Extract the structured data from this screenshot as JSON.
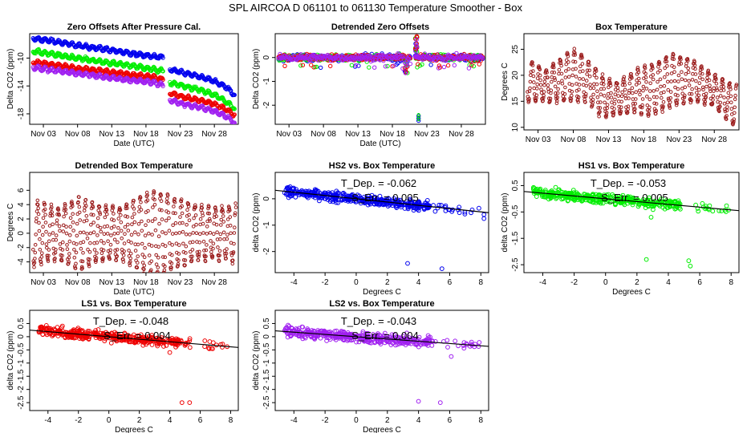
{
  "figure_title": "SPL   AIRCOA D   061101 to 061130   Temperature Smoother - Box",
  "colors": {
    "blue": "#0000ee",
    "green": "#00ee00",
    "red": "#ee0000",
    "purple": "#a020f0",
    "brown": "#9b1c1c"
  },
  "chart_data": [
    {
      "id": "zero-offsets",
      "type": "scatter",
      "title": "Zero Offsets After Pressure Cal.",
      "xlabel": "Date (UTC)",
      "ylabel": "Delta CO2 (ppm)",
      "xlim": [
        1,
        31.5
      ],
      "ylim": [
        -19.5,
        -6.5
      ],
      "xticks": [
        3,
        8,
        13,
        18,
        23,
        28
      ],
      "xticklabels": [
        "Nov 03",
        "Nov 08",
        "Nov 13",
        "Nov 18",
        "Nov 23",
        "Nov 28"
      ],
      "yticks": [
        -18,
        -14,
        -10
      ],
      "yticklabels": [
        "-18",
        "-14",
        "-10"
      ],
      "series": [
        {
          "name": "HS2",
          "color": "#0000ee",
          "segments": [
            {
              "x": [
                1.5,
                4,
                8,
                12,
                16,
                19,
                20.5
              ],
              "y": [
                -7.2,
                -7.5,
                -8.2,
                -8.7,
                -9.4,
                -9.7,
                -9.9
              ]
            },
            {
              "x": [
                21.5,
                23,
                26,
                28,
                29.8,
                31
              ],
              "y": [
                -11.6,
                -12.0,
                -12.7,
                -13.3,
                -14.2,
                -15.3
              ]
            }
          ]
        },
        {
          "name": "HS1",
          "color": "#00ee00",
          "segments": [
            {
              "x": [
                1.5,
                4,
                8,
                12,
                16,
                19,
                20.5
              ],
              "y": [
                -9.0,
                -9.4,
                -10.0,
                -10.6,
                -11.1,
                -11.6,
                -11.9
              ]
            },
            {
              "x": [
                21.5,
                23,
                26,
                28,
                29.8,
                31
              ],
              "y": [
                -13.5,
                -13.9,
                -14.6,
                -15.3,
                -16.3,
                -17.3
              ]
            }
          ]
        },
        {
          "name": "LS1",
          "color": "#ee0000",
          "segments": [
            {
              "x": [
                1.5,
                4,
                8,
                12,
                16,
                19,
                20.5
              ],
              "y": [
                -10.6,
                -10.9,
                -11.5,
                -11.9,
                -12.4,
                -12.7,
                -13.1
              ]
            },
            {
              "x": [
                21.5,
                23,
                26,
                28,
                29.8,
                31
              ],
              "y": [
                -15.0,
                -15.5,
                -16.1,
                -16.6,
                -17.4,
                -18.2
              ]
            }
          ]
        },
        {
          "name": "LS2",
          "color": "#a020f0",
          "segments": [
            {
              "x": [
                1.5,
                4,
                8,
                12,
                16,
                19,
                20.5
              ],
              "y": [
                -11.3,
                -11.7,
                -12.2,
                -12.7,
                -13.2,
                -13.5,
                -13.9
              ]
            },
            {
              "x": [
                21.5,
                23,
                26,
                28,
                29.8,
                31
              ],
              "y": [
                -16.0,
                -16.5,
                -17.1,
                -17.6,
                -18.4,
                -19.3
              ]
            }
          ]
        }
      ]
    },
    {
      "id": "detrended-zero-offsets",
      "type": "scatter",
      "title": "Detrended Zero Offsets",
      "xlabel": "Date (UTC)",
      "ylabel": "Delta CO2 (ppm)",
      "xlim": [
        1,
        31.5
      ],
      "ylim": [
        -2.8,
        1.0
      ],
      "xticks": [
        3,
        8,
        13,
        18,
        23,
        28
      ],
      "xticklabels": [
        "Nov 03",
        "Nov 08",
        "Nov 13",
        "Nov 18",
        "Nov 23",
        "Nov 28"
      ],
      "yticks": [
        -2,
        -1,
        0
      ],
      "yticklabels": [
        "-2",
        "-1",
        "0"
      ],
      "series_colors": [
        "#0000ee",
        "#00ee00",
        "#ee0000",
        "#a020f0"
      ],
      "band": [
        -0.25,
        0.25
      ],
      "features": {
        "spike_day": 21.3,
        "spike_max": 0.95,
        "outlier_day": 21.8,
        "outlier_values": [
          -2.45,
          -2.55,
          -2.65
        ],
        "dip_day": 20.0,
        "dip_min": -0.65
      }
    },
    {
      "id": "box-temperature",
      "type": "line",
      "title": "Box Temperature",
      "xlabel": "",
      "ylabel": "Degrees C",
      "xlim": [
        1,
        31.5
      ],
      "ylim": [
        9.5,
        28
      ],
      "xticks": [
        3,
        8,
        13,
        18,
        23,
        28
      ],
      "xticklabels": [
        "Nov 03",
        "Nov 08",
        "Nov 13",
        "Nov 18",
        "Nov 23",
        "Nov 28"
      ],
      "yticks": [
        10,
        15,
        20,
        25
      ],
      "yticklabels": [
        "10",
        "15",
        "20",
        "25"
      ],
      "color": "#9b1c1c",
      "baseline": [
        [
          1.5,
          19
        ],
        [
          4,
          18
        ],
        [
          8,
          20
        ],
        [
          10,
          19
        ],
        [
          12,
          16
        ],
        [
          14,
          15.5
        ],
        [
          17,
          17
        ],
        [
          19,
          17
        ],
        [
          22,
          19
        ],
        [
          25,
          19
        ],
        [
          28,
          17
        ],
        [
          31,
          14
        ]
      ],
      "amplitude": [
        [
          1.5,
          4
        ],
        [
          4,
          3
        ],
        [
          8,
          5
        ],
        [
          10,
          4
        ],
        [
          12,
          4
        ],
        [
          14,
          3
        ],
        [
          17,
          4
        ],
        [
          19,
          5
        ],
        [
          22,
          5
        ],
        [
          25,
          4
        ],
        [
          28,
          3
        ],
        [
          31,
          4
        ]
      ]
    },
    {
      "id": "detrended-box-temperature",
      "type": "line",
      "title": "Detrended Box Temperature",
      "xlabel": "Date (UTC)",
      "ylabel": "Degrees C",
      "xlim": [
        1,
        31.5
      ],
      "ylim": [
        -5.5,
        8.5
      ],
      "xticks": [
        3,
        8,
        13,
        18,
        23,
        28
      ],
      "xticklabels": [
        "Nov 03",
        "Nov 08",
        "Nov 13",
        "Nov 18",
        "Nov 23",
        "Nov 28"
      ],
      "yticks": [
        -4,
        -2,
        0,
        2,
        4,
        6
      ],
      "yticklabels": [
        "-4",
        "-2",
        "0",
        "2",
        "4",
        "6"
      ],
      "color": "#9b1c1c",
      "amplitude": [
        [
          1.5,
          4.5
        ],
        [
          5,
          3.5
        ],
        [
          8,
          5
        ],
        [
          11,
          4
        ],
        [
          14,
          3.5
        ],
        [
          17,
          5
        ],
        [
          19,
          6
        ],
        [
          22,
          5
        ],
        [
          25,
          4
        ],
        [
          28,
          3.5
        ],
        [
          31,
          4
        ]
      ]
    },
    {
      "id": "hs2-vs-box",
      "type": "scatter",
      "title": "HS2 vs. Box Temperature",
      "xlabel": "Degrees C",
      "ylabel": "delta CO2 (ppm)",
      "xlim": [
        -5.2,
        8.5
      ],
      "ylim": [
        -2.8,
        1.0
      ],
      "xticks": [
        -4,
        -2,
        0,
        2,
        4,
        6,
        8
      ],
      "xticklabels": [
        "-4",
        "-2",
        "0",
        "2",
        "4",
        "6",
        "8"
      ],
      "yticks": [
        -2,
        -1,
        0
      ],
      "yticklabels": [
        "-2",
        "-1",
        "0"
      ],
      "color": "#0000ee",
      "annotation": {
        "tdep_label": "T_Dep. =",
        "tdep_value": "-0.062",
        "serr_label": "S_Err. =",
        "serr_value": "0.005"
      },
      "fit": {
        "slope": -0.062,
        "intercept": 0.0
      },
      "outliers": [
        [
          3.3,
          -2.45
        ],
        [
          5.5,
          -2.65
        ],
        [
          8.2,
          -0.6
        ],
        [
          8.2,
          -0.75
        ]
      ]
    },
    {
      "id": "hs1-vs-box",
      "type": "scatter",
      "title": "HS1 vs. Box Temperature",
      "xlabel": "Degrees C",
      "ylabel": "delta CO2 (ppm)",
      "xlim": [
        -5.2,
        8.5
      ],
      "ylim": [
        -2.8,
        1.0
      ],
      "xticks": [
        -4,
        -2,
        0,
        2,
        4,
        6,
        8
      ],
      "xticklabels": [
        "-4",
        "-2",
        "0",
        "2",
        "4",
        "6",
        "8"
      ],
      "yticks": [
        -2.5,
        -1.5,
        -0.5,
        0.5
      ],
      "yticklabels": [
        "-2.5",
        "-1.5",
        "-0.5",
        "0.5"
      ],
      "color": "#00ee00",
      "annotation": {
        "tdep_label": "T_Dep. =",
        "tdep_value": "-0.053",
        "serr_label": "S_Err. =",
        "serr_value": "0.005"
      },
      "fit": {
        "slope": -0.053,
        "intercept": 0.0
      },
      "outliers": [
        [
          2.6,
          -2.3
        ],
        [
          5.3,
          -2.35
        ],
        [
          5.4,
          -2.55
        ],
        [
          2.9,
          -0.7
        ]
      ]
    },
    {
      "id": "ls1-vs-box",
      "type": "scatter",
      "title": "LS1 vs. Box Temperature",
      "xlabel": "Degrees C",
      "ylabel": "delta CO2 (ppm)",
      "xlim": [
        -5.2,
        8.5
      ],
      "ylim": [
        -2.8,
        1.0
      ],
      "xticks": [
        -4,
        -2,
        0,
        2,
        4,
        6,
        8
      ],
      "xticklabels": [
        "-4",
        "-2",
        "0",
        "2",
        "4",
        "6",
        "8"
      ],
      "yticks": [
        -2.5,
        -2,
        -1.5,
        -1,
        -0.5,
        0,
        0.5
      ],
      "yticklabels": [
        "-2.5",
        "-2",
        "-1.5",
        "-1",
        "-0.5",
        "0",
        "0.5"
      ],
      "color": "#ee0000",
      "annotation": {
        "tdep_label": "T_Dep. =",
        "tdep_value": "-0.048",
        "serr_label": "S_Err. =",
        "serr_value": "0.004"
      },
      "fit": {
        "slope": -0.048,
        "intercept": 0.0
      },
      "outliers": [
        [
          4.8,
          -2.5
        ],
        [
          5.3,
          -2.5
        ],
        [
          4.0,
          -0.6
        ]
      ]
    },
    {
      "id": "ls2-vs-box",
      "type": "scatter",
      "title": "LS2 vs. Box Temperature",
      "xlabel": "Degrees C",
      "ylabel": "delta CO2 (ppm)",
      "xlim": [
        -5.2,
        8.5
      ],
      "ylim": [
        -2.8,
        1.0
      ],
      "xticks": [
        -4,
        -2,
        0,
        2,
        4,
        6,
        8
      ],
      "xticklabels": [
        "-4",
        "-2",
        "0",
        "2",
        "4",
        "6",
        "8"
      ],
      "yticks": [
        -2.5,
        -2,
        -1.5,
        -1,
        -0.5,
        0,
        0.5
      ],
      "yticklabels": [
        "-2.5",
        "-2",
        "-1.5",
        "-1",
        "-0.5",
        "0",
        "0.5"
      ],
      "color": "#a020f0",
      "annotation": {
        "tdep_label": "T_Dep. =",
        "tdep_value": "-0.043",
        "serr_label": "S_Err. =",
        "serr_value": "0.004"
      },
      "fit": {
        "slope": -0.043,
        "intercept": 0.0
      },
      "outliers": [
        [
          4.0,
          -2.45
        ],
        [
          5.4,
          -2.5
        ],
        [
          6.1,
          -0.75
        ]
      ]
    }
  ]
}
